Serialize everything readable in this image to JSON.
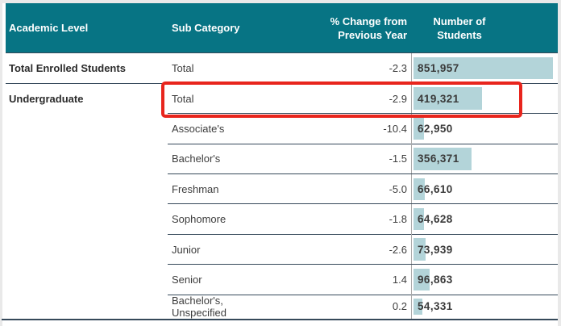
{
  "colors": {
    "header_bg": "#077484",
    "header_text": "#ffffff",
    "bar_fill": "#b3d4d9",
    "row_line": "#36495a",
    "column_line": "#a9a9a9",
    "highlight_box": "#e8251d",
    "text": "#3d3d3d",
    "frame_bg": "#e9e9e9",
    "page_bg": "#ffffff"
  },
  "table": {
    "headers": {
      "academic_level": "Academic Level",
      "sub_category": "Sub Category",
      "pct_change_line1": "% Change from",
      "pct_change_line2": "Previous Year",
      "students_line1": "Number of",
      "students_line2": "Students"
    },
    "rows": [
      {
        "academic_level": "Total Enrolled Students",
        "academic_level_bold": true,
        "sub_category": "Total",
        "pct_change": "-2.3",
        "students_display": "851,957",
        "students_value": 851957,
        "full_divider": true,
        "highlighted": false
      },
      {
        "academic_level": "Undergraduate",
        "academic_level_bold": true,
        "sub_category": "Total",
        "pct_change": "-2.9",
        "students_display": "419,321",
        "students_value": 419321,
        "full_divider": false,
        "highlighted": true
      },
      {
        "academic_level": "",
        "academic_level_bold": false,
        "sub_category": "Associate's",
        "pct_change": "-10.4",
        "students_display": "62,950",
        "students_value": 62950,
        "full_divider": false,
        "highlighted": false
      },
      {
        "academic_level": "",
        "academic_level_bold": false,
        "sub_category": "Bachelor's",
        "pct_change": "-1.5",
        "students_display": "356,371",
        "students_value": 356371,
        "full_divider": false,
        "highlighted": false
      },
      {
        "academic_level": "",
        "academic_level_bold": false,
        "sub_category": "Freshman",
        "pct_change": "-5.0",
        "students_display": "66,610",
        "students_value": 66610,
        "full_divider": false,
        "highlighted": false
      },
      {
        "academic_level": "",
        "academic_level_bold": false,
        "sub_category": "Sophomore",
        "pct_change": "-1.8",
        "students_display": "64,628",
        "students_value": 64628,
        "full_divider": false,
        "highlighted": false
      },
      {
        "academic_level": "",
        "academic_level_bold": false,
        "sub_category": "Junior",
        "pct_change": "-2.6",
        "students_display": "73,939",
        "students_value": 73939,
        "full_divider": false,
        "highlighted": false
      },
      {
        "academic_level": "",
        "academic_level_bold": false,
        "sub_category": "Senior",
        "pct_change": "1.4",
        "students_display": "96,863",
        "students_value": 96863,
        "full_divider": false,
        "highlighted": false
      },
      {
        "academic_level": "",
        "academic_level_bold": false,
        "sub_category": "Bachelor's, Unspecified",
        "pct_change": "0.2",
        "students_display": "54,331",
        "students_value": 54331,
        "full_divider": false,
        "highlighted": false
      }
    ]
  },
  "annotation": {
    "highlighted_row": "Undergraduate / Total",
    "box_color": "#e8251d"
  },
  "chart_data": {
    "type": "table",
    "columns": [
      "Academic Level",
      "Sub Category",
      "% Change from Previous Year",
      "Number of Students"
    ],
    "rows": [
      [
        "Total Enrolled Students",
        "Total",
        -2.3,
        851957
      ],
      [
        "Undergraduate",
        "Total",
        -2.9,
        419321
      ],
      [
        "Undergraduate",
        "Associate's",
        -10.4,
        62950
      ],
      [
        "Undergraduate",
        "Bachelor's",
        -1.5,
        356371
      ],
      [
        "Undergraduate",
        "Freshman",
        -5.0,
        66610
      ],
      [
        "Undergraduate",
        "Sophomore",
        -1.8,
        64628
      ],
      [
        "Undergraduate",
        "Junior",
        -2.6,
        73939
      ],
      [
        "Undergraduate",
        "Senior",
        1.4,
        96863
      ],
      [
        "Undergraduate",
        "Bachelor's, Unspecified",
        0.2,
        54331
      ]
    ],
    "number_of_students_bar": {
      "max_value": 851957,
      "color": "#b3d4d9"
    },
    "legend_position": "none",
    "grid": "row-dividers"
  }
}
